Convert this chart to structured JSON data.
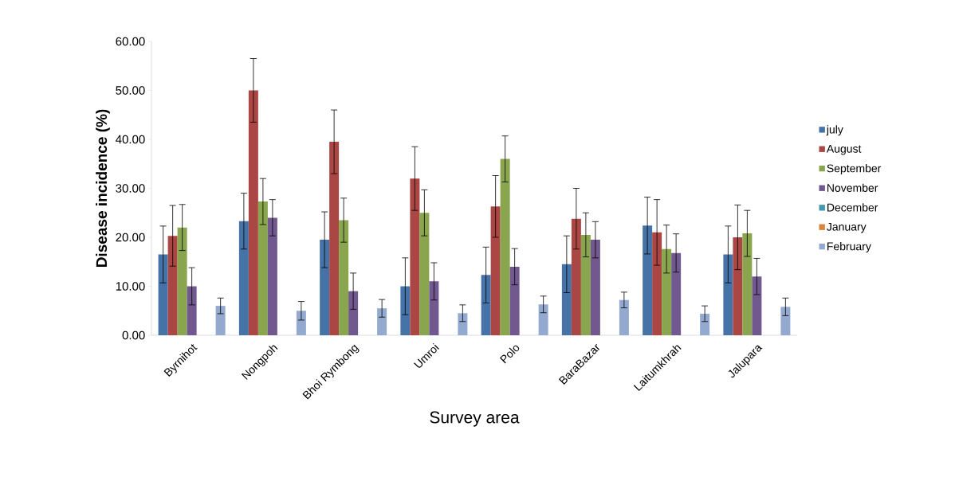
{
  "chart_data": {
    "type": "bar",
    "xlabel": "Survey area",
    "ylabel": "Disease incidence (%)",
    "categories": [
      "Byrnihot",
      "Nongpoh",
      "Bhoi Rymbong",
      "Umroi",
      "Polo",
      "BaraBazar",
      "Laitumkhrah",
      "Jalupara"
    ],
    "series": [
      {
        "name": "july",
        "color": "#4572a7",
        "values": [
          16.5,
          23.3,
          19.5,
          10,
          12.3,
          14.5,
          22.4,
          16.5
        ],
        "errors": [
          5.8,
          5.7,
          5.7,
          5.8,
          5.7,
          5.8,
          5.8,
          5.8
        ]
      },
      {
        "name": "August",
        "color": "#aa4643",
        "values": [
          20.3,
          50,
          39.5,
          32,
          26.3,
          23.8,
          21,
          20
        ],
        "errors": [
          6.2,
          6.5,
          6.5,
          6.5,
          6.3,
          6.2,
          6.7,
          6.6
        ]
      },
      {
        "name": "September",
        "color": "#89a54e",
        "values": [
          22,
          27.3,
          23.5,
          25,
          36,
          20.5,
          17.6,
          20.8
        ],
        "errors": [
          4.7,
          4.7,
          4.5,
          4.7,
          4.7,
          4.5,
          4.9,
          4.7
        ]
      },
      {
        "name": "November",
        "color": "#71588f",
        "values": [
          10,
          24,
          9,
          11,
          14,
          19.5,
          16.8,
          12
        ],
        "errors": [
          3.8,
          3.7,
          3.7,
          3.8,
          3.7,
          3.7,
          3.9,
          3.7
        ]
      },
      {
        "name": "December",
        "color": "#4198af",
        "values": [
          null,
          null,
          null,
          null,
          null,
          null,
          null,
          null
        ]
      },
      {
        "name": "January",
        "color": "#db843d",
        "values": [
          null,
          null,
          null,
          null,
          null,
          null,
          null,
          null
        ]
      },
      {
        "name": "February",
        "color": "#93a9cf",
        "values": [
          6,
          5,
          5.5,
          4.5,
          6.3,
          7.2,
          4.4,
          5.8
        ],
        "errors": [
          1.6,
          1.9,
          1.8,
          1.7,
          1.7,
          1.6,
          1.6,
          1.8
        ]
      }
    ],
    "ylim": [
      0,
      60
    ],
    "yticks": [
      {
        "value": 0,
        "label": "0.00"
      },
      {
        "value": 10,
        "label": "10.00"
      },
      {
        "value": 20,
        "label": "20.00"
      },
      {
        "value": 30,
        "label": "30.00"
      },
      {
        "value": 40,
        "label": "40.00"
      },
      {
        "value": 50,
        "label": "50.00"
      },
      {
        "value": 60,
        "label": "60.00"
      }
    ],
    "grid": false,
    "legend": "right"
  }
}
